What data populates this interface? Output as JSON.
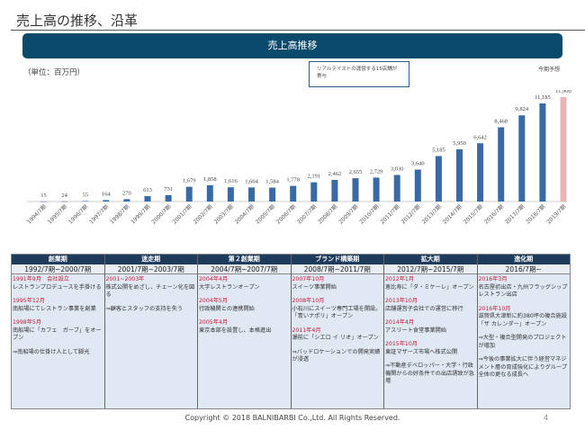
{
  "page": {
    "title": "売上高の推移、沿革",
    "banner": "売上高推移",
    "unit": "（単位：百万円）",
    "forecast_label": "今期予想",
    "callout": "リアルテイストの運営する15店舗が寄与",
    "copyright": "Copyright © 2018 BALNIBARBI Co.,Ltd. All Rights Reserved.",
    "page_number": "4"
  },
  "chart_data": {
    "type": "bar",
    "title": "売上高推移",
    "ylabel": "百万円",
    "categories": [
      "1994/7期",
      "1995/7期",
      "1996/7期",
      "1997/7期",
      "1998/7期",
      "1999/7期",
      "2000/7期",
      "2001/7期",
      "2002/7期",
      "2003/7期",
      "2004/7期",
      "2005/7期",
      "2006/7期",
      "2007/7期",
      "2008/7期",
      "2009/7期",
      "2010/7期",
      "2011/7期",
      "2012/7期",
      "2013/7期",
      "2014/7期",
      "2015/7期",
      "2016/7期",
      "2017/7期",
      "2018/7期",
      "2019/7期"
    ],
    "values": [
      15,
      24,
      55,
      164,
      270,
      613,
      731,
      1679,
      1858,
      1616,
      1604,
      1584,
      1778,
      2191,
      2462,
      2655,
      2729,
      3030,
      3640,
      5185,
      5950,
      6642,
      8468,
      9824,
      11185,
      11900
    ],
    "labels": [
      "15",
      "24",
      "55",
      "164",
      "270",
      "613",
      "731",
      "1,679",
      "1,858",
      "1,616",
      "1,604",
      "1,584",
      "1,778",
      "2,191",
      "2,462",
      "2,655",
      "2,729",
      "3,030",
      "3,640",
      "5,185",
      "5,950",
      "6,642",
      "8,468",
      "9,824",
      "11,185",
      "11,900"
    ],
    "forecast_index": 25,
    "colors": {
      "actual": "#3a6aa5",
      "forecast": "#e8b4b8"
    },
    "ylim": [
      0,
      11900
    ]
  },
  "phases": [
    {
      "name": "創業期",
      "period": "1992/7期~2000/7期",
      "events": [
        {
          "date": "1991年9月　会社設立",
          "text": "レストランプロデュースを手掛ける"
        },
        {
          "date": "1995年12月",
          "text": "南船場にてレストラン事業を創業"
        },
        {
          "date": "1998年5月",
          "text": "南船場に「カフェ　ガーブ」をオープン"
        },
        {
          "date": "",
          "text": "⇒南船場の仕掛け人として脚光"
        }
      ]
    },
    {
      "name": "迷走期",
      "period": "2001/7期~2003/7期",
      "events": [
        {
          "date": "2001~2003年",
          "text": "株式公開をめざし、チェーン化を図る"
        },
        {
          "date": "",
          "text": "⇒顧客とスタッフの支持を失う"
        }
      ]
    },
    {
      "name": "第２創業期",
      "period": "2004/7期~2007/7期",
      "events": [
        {
          "date": "2004年4月",
          "text": "大学レストランオープン"
        },
        {
          "date": "2004年5月",
          "text": "行政機関との連携開始"
        },
        {
          "date": "2005年4月",
          "text": "東京本部を設置し、本格進出"
        }
      ]
    },
    {
      "name": "ブランド構築期",
      "period": "2008/7期~2011/7期",
      "events": [
        {
          "date": "2007年10月",
          "text": "スイーツ事業開始"
        },
        {
          "date": "2008年10月",
          "text": "小石川にスイーツ専門工場を開設。「青いナポリ」オープン"
        },
        {
          "date": "2011年4月",
          "text": "瀬前に「シエロ イ リオ」オープン"
        },
        {
          "date": "",
          "text": "⇒バッドロケーションでの開発実績が浸透"
        }
      ]
    },
    {
      "name": "拡大期",
      "period": "2012/7期~2015/7期",
      "events": [
        {
          "date": "2012年1月",
          "text": "恵比寿に「ダ・ミケーレ」オープン"
        },
        {
          "date": "2013年10月",
          "text": "店舗運営子会社での運営に移行"
        },
        {
          "date": "2014年4月",
          "text": "アスリート食堂事業開始"
        },
        {
          "date": "2015年10月",
          "text": "東証マザーズ市場へ株式公開"
        },
        {
          "date": "",
          "text": "⇒不動産デベロッパー・大学・行政機関からの好条件での出店誘致が急増"
        }
      ]
    },
    {
      "name": "進化期",
      "period": "2016/7期~",
      "events": [
        {
          "date": "2016年3月",
          "text": "名古屋初出店・九州フラッグシップレストラン出店"
        },
        {
          "date": "2016年10月",
          "text": "滋賀県大津新に約380坪の複合施設「ザ カレンダー」オープン"
        },
        {
          "date": "",
          "text": "⇒大型・複合型開発のプロジェクトが増加"
        },
        {
          "date": "",
          "text": "⇒今後の事業拡大に伴う経営マネジメント層の育成強化によりグループ全体の更なる成長へ"
        }
      ]
    }
  ]
}
